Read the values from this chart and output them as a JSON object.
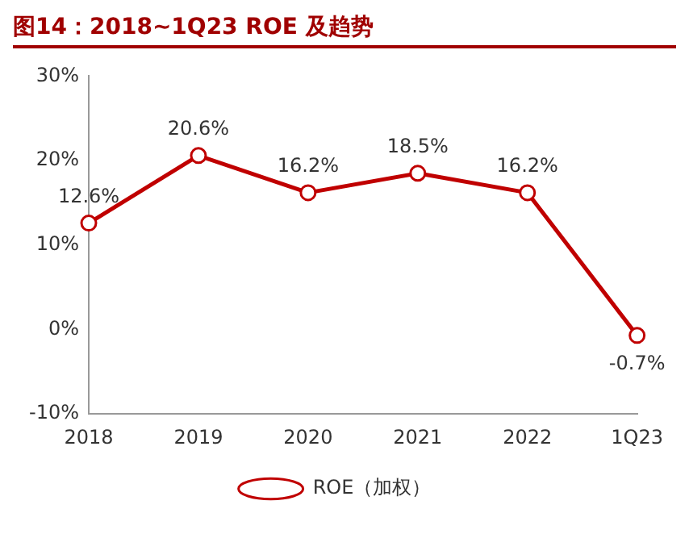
{
  "chart_data": {
    "type": "line",
    "title": "图14：2018~1Q23 ROE 及趋势",
    "categories": [
      "2018",
      "2019",
      "2020",
      "2021",
      "2022",
      "1Q23"
    ],
    "series": [
      {
        "name": "ROE（加权）",
        "color": "#c00000",
        "values": [
          12.6,
          20.6,
          16.2,
          18.5,
          16.2,
          -0.7
        ],
        "value_labels": [
          "12.6%",
          "20.6%",
          "16.2%",
          "18.5%",
          "16.2%",
          "-0.7%"
        ]
      }
    ],
    "ylim": [
      -10,
      30
    ],
    "yticks": [
      {
        "value": -10,
        "label": "-10%"
      },
      {
        "value": 0,
        "label": "0%"
      },
      {
        "value": 10,
        "label": "10%"
      },
      {
        "value": 20,
        "label": "20%"
      },
      {
        "value": 30,
        "label": "30%"
      }
    ],
    "grid": false,
    "legend": "bottom",
    "marker": "circle",
    "line_style": "solid"
  }
}
